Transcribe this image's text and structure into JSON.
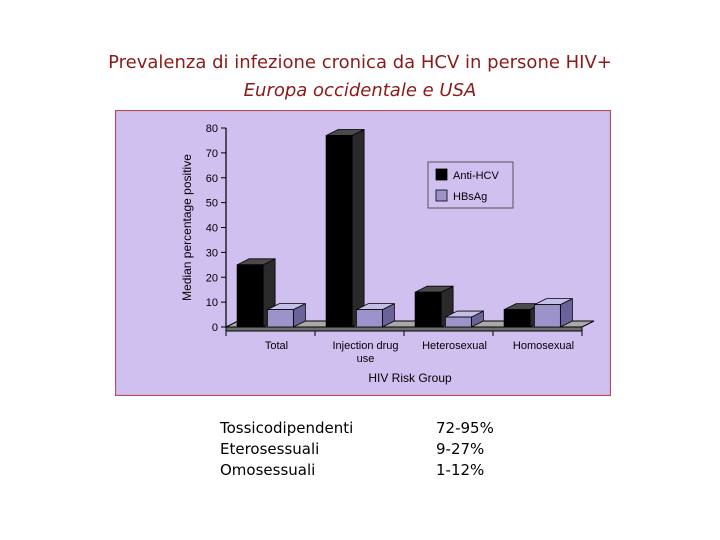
{
  "slide": {
    "title": "Prevalenza di infezione cronica da HCV in persone HIV+",
    "subtitle": "Europa occidentale e USA"
  },
  "chart_data": {
    "type": "bar",
    "categories": [
      "Total",
      "Injection drug use",
      "Heterosexual",
      "Homosexual"
    ],
    "category_lines": [
      [
        "Total"
      ],
      [
        "Injection drug",
        "use"
      ],
      [
        "Heterosexual"
      ],
      [
        "Homosexual"
      ]
    ],
    "series": [
      {
        "name": "Anti-HCV",
        "values": [
          25,
          77,
          14,
          7
        ]
      },
      {
        "name": "HBsAg",
        "values": [
          7,
          7,
          4,
          9
        ]
      }
    ],
    "xlabel": "HIV Risk Group",
    "ylabel": "Median percentage positive",
    "ylim": [
      0,
      80
    ],
    "yticks": [
      0,
      10,
      20,
      30,
      40,
      50,
      60,
      70,
      80
    ],
    "grid": false,
    "legend": "top-right",
    "style": "3d",
    "colors": {
      "background": "#cfc0f0",
      "plot_border": "#c0475a",
      "anti_hcv": "#000000",
      "hbsag": "#9b93c9"
    }
  },
  "stats": [
    {
      "group": "Tossicodipendenti",
      "range": "72-95%"
    },
    {
      "group": "Eterosessuali",
      "range": "9-27%"
    },
    {
      "group": "Omosessuali",
      "range": "1-12%"
    }
  ]
}
